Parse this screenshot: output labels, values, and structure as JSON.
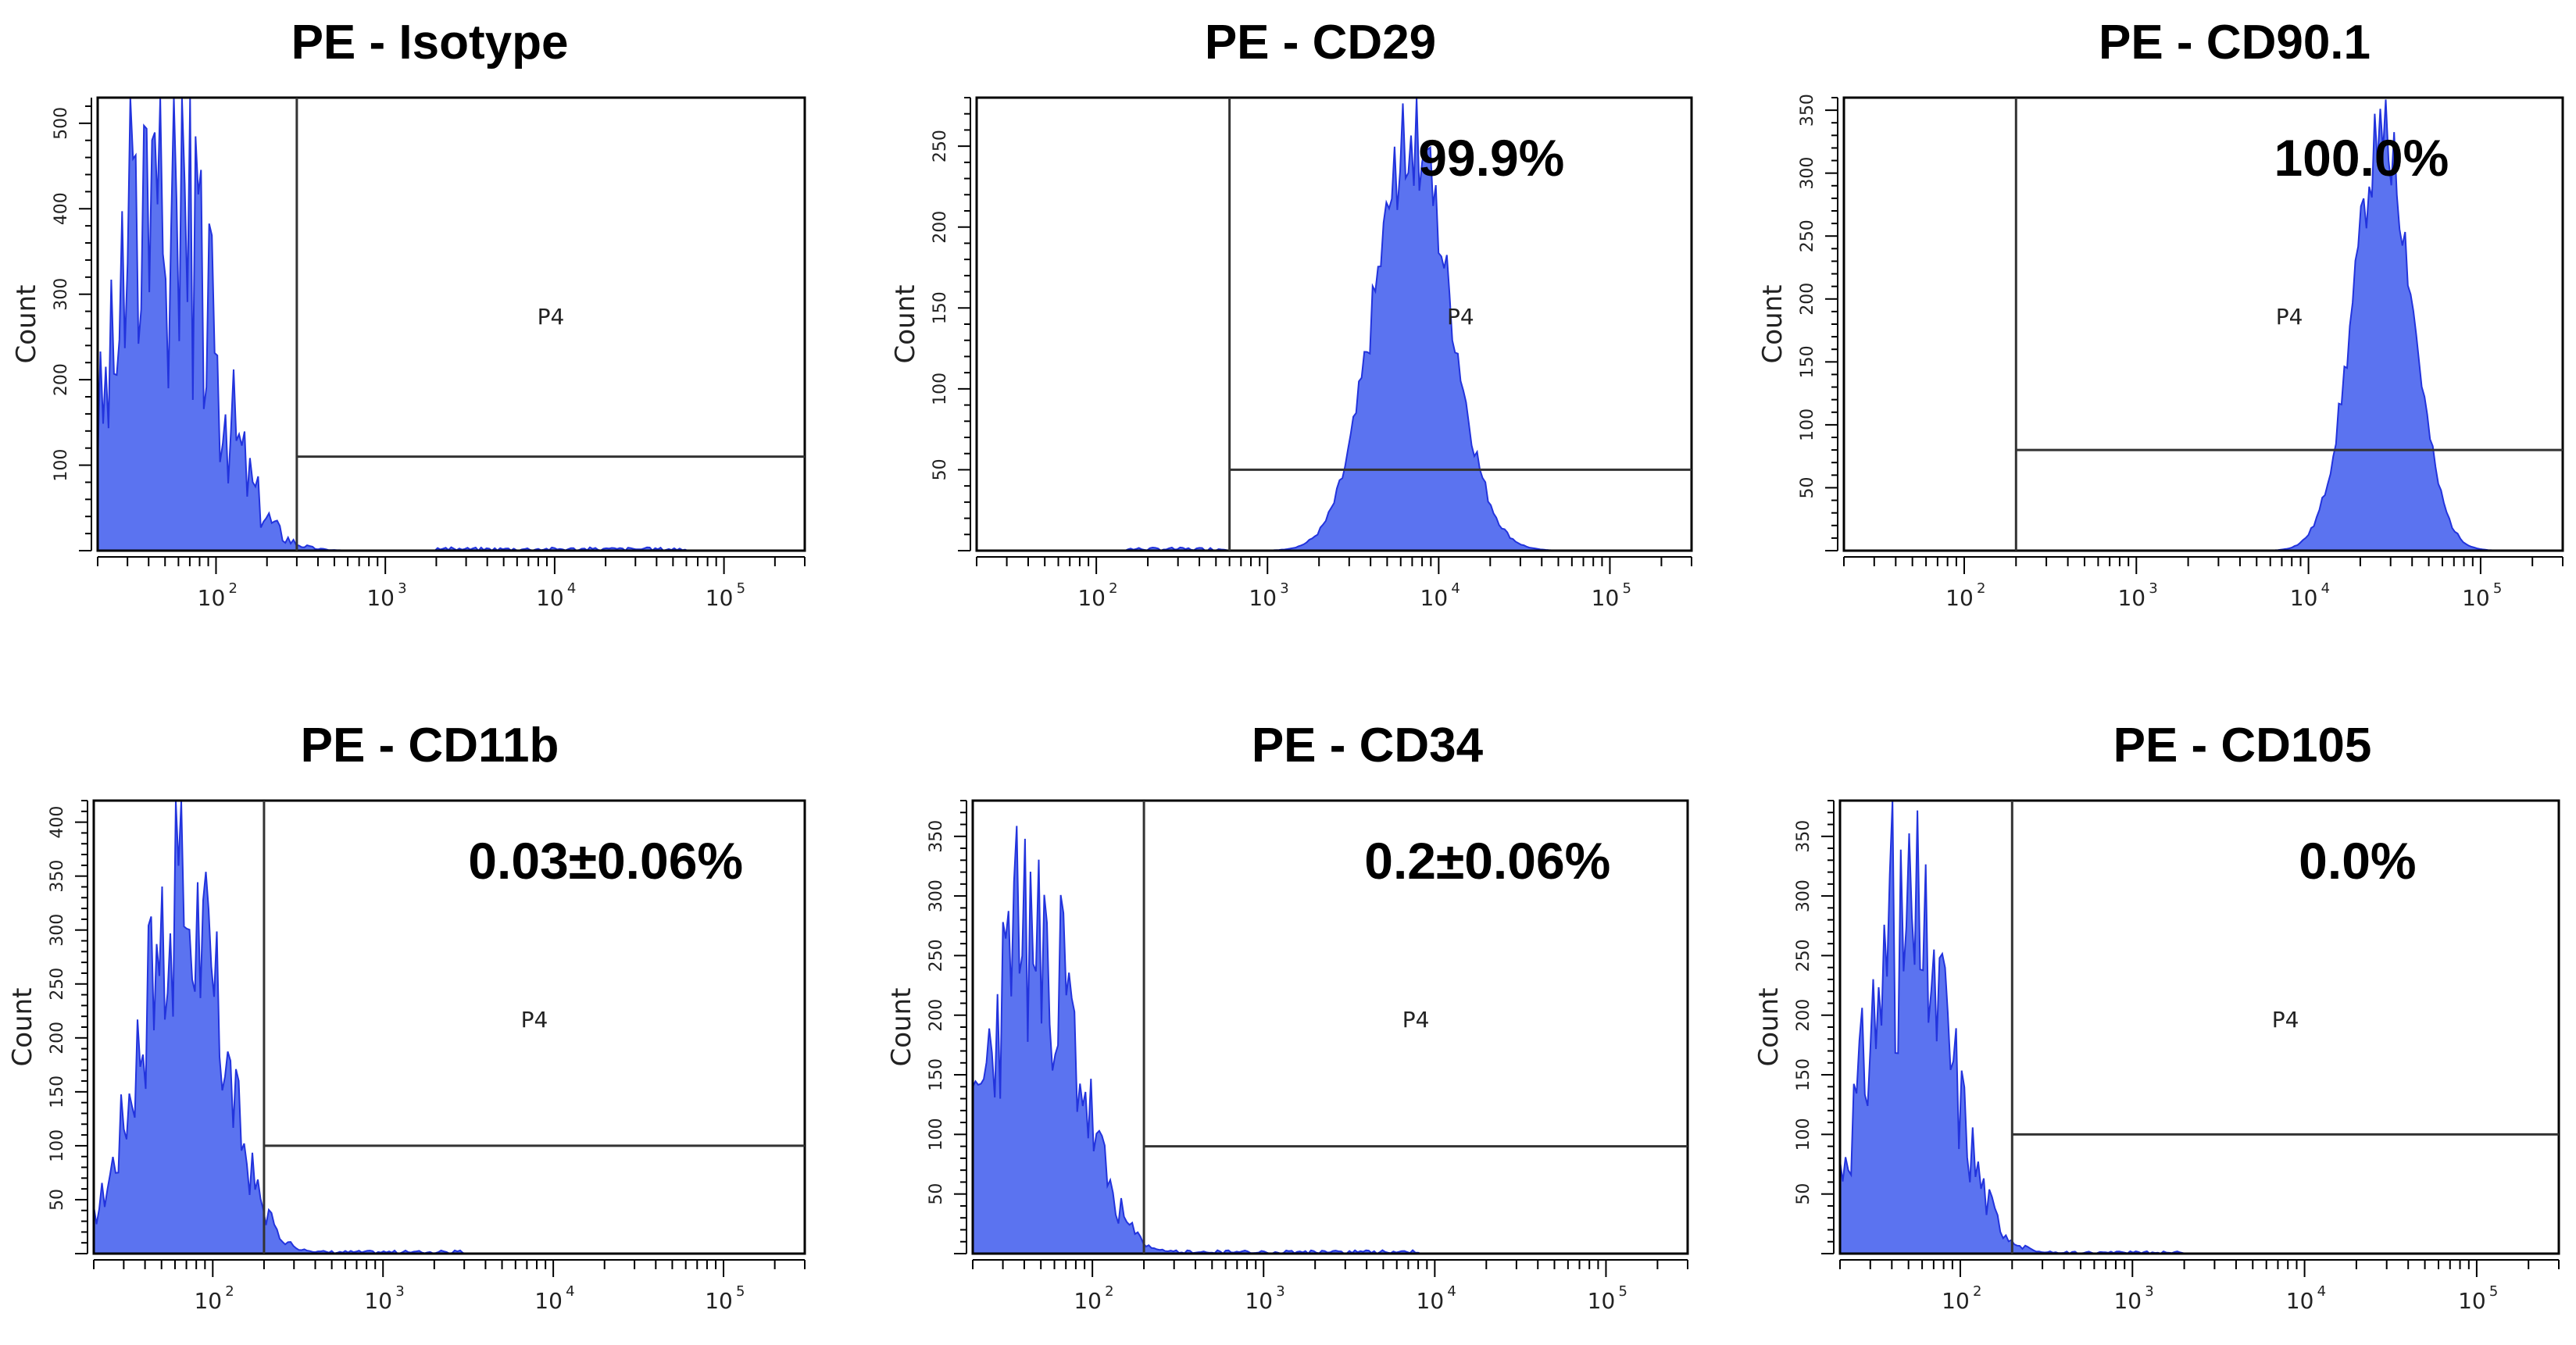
{
  "colors": {
    "histogram_fill": "#5b73f0",
    "histogram_stroke": "#2233dd",
    "frame": "#000000",
    "gate_line": "#333333"
  },
  "chart_data": [
    {
      "type": "histogram",
      "title": "PE - Isotype",
      "ylabel": "Count",
      "xscale": "log",
      "xlim": [
        20,
        300000
      ],
      "x_tick_labels": [
        {
          "exp": "2",
          "value": 100
        },
        {
          "exp": "3",
          "value": 1000
        },
        {
          "exp": "4",
          "value": 10000
        },
        {
          "exp": "5",
          "value": 100000
        }
      ],
      "ylim": [
        0,
        530
      ],
      "y_tick_labels": [
        "100",
        "200",
        "300",
        "400",
        "500"
      ],
      "y_tick_values": [
        100,
        200,
        300,
        400,
        500
      ],
      "gate": {
        "label": "P4",
        "x_start": 300,
        "y_level": 110
      },
      "percent_label": "",
      "distribution": {
        "center": 50,
        "log_sigma": 0.28,
        "peak": 400,
        "spike": 530,
        "noise": 0.55,
        "seed": 3
      },
      "tail": {
        "from": 2000,
        "to": 60000,
        "level": 4
      }
    },
    {
      "type": "histogram",
      "title": "PE - CD29",
      "ylabel": "Count",
      "xscale": "log",
      "xlim": [
        20,
        300000
      ],
      "x_tick_labels": [
        {
          "exp": "2",
          "value": 100
        },
        {
          "exp": "3",
          "value": 1000
        },
        {
          "exp": "4",
          "value": 10000
        },
        {
          "exp": "5",
          "value": 100000
        }
      ],
      "ylim": [
        0,
        280
      ],
      "y_tick_labels": [
        "50",
        "100",
        "150",
        "200",
        "250"
      ],
      "y_tick_values": [
        50,
        100,
        150,
        200,
        250
      ],
      "gate": {
        "label": "P4",
        "x_start": 600,
        "y_level": 50
      },
      "percent_label": "99.9%",
      "distribution": {
        "center": 7000,
        "log_sigma": 0.22,
        "peak": 255,
        "spike": 275,
        "noise": 0.12,
        "seed": 7
      },
      "tail": {
        "from": 150,
        "to": 600,
        "level": 2
      }
    },
    {
      "type": "histogram",
      "title": "PE - CD90.1",
      "ylabel": "Count",
      "xscale": "log",
      "xlim": [
        20,
        300000
      ],
      "x_tick_labels": [
        {
          "exp": "2",
          "value": 100
        },
        {
          "exp": "3",
          "value": 1000
        },
        {
          "exp": "4",
          "value": 10000
        },
        {
          "exp": "5",
          "value": 100000
        }
      ],
      "ylim": [
        0,
        360
      ],
      "y_tick_labels": [
        "50",
        "100",
        "150",
        "200",
        "250",
        "300",
        "350"
      ],
      "y_tick_values": [
        50,
        100,
        150,
        200,
        250,
        300,
        350
      ],
      "gate": {
        "label": "P4",
        "x_start": 200,
        "y_level": 80
      },
      "percent_label": "100.0%",
      "distribution": {
        "center": 27000,
        "log_sigma": 0.17,
        "peak": 330,
        "spike": 360,
        "noise": 0.1,
        "seed": 11
      },
      "tail": {
        "from": 0,
        "to": 0,
        "level": 0
      }
    },
    {
      "type": "histogram",
      "title": "PE - CD11b",
      "ylabel": "Count",
      "xscale": "log",
      "xlim": [
        20,
        300000
      ],
      "x_tick_labels": [
        {
          "exp": "2",
          "value": 100
        },
        {
          "exp": "3",
          "value": 1000
        },
        {
          "exp": "4",
          "value": 10000
        },
        {
          "exp": "5",
          "value": 100000
        }
      ],
      "ylim": [
        0,
        420
      ],
      "y_tick_labels": [
        "50",
        "100",
        "150",
        "200",
        "250",
        "300",
        "350",
        "400"
      ],
      "y_tick_values": [
        50,
        100,
        150,
        200,
        250,
        300,
        350,
        400
      ],
      "gate": {
        "label": "P4",
        "x_start": 200,
        "y_level": 100
      },
      "percent_label": "0.03±0.06%",
      "distribution": {
        "center": 65,
        "log_sigma": 0.24,
        "peak": 330,
        "spike": 420,
        "noise": 0.35,
        "seed": 17
      },
      "tail": {
        "from": 200,
        "to": 3000,
        "level": 3
      }
    },
    {
      "type": "histogram",
      "title": "PE - CD34",
      "ylabel": "Count",
      "xscale": "log",
      "xlim": [
        20,
        300000
      ],
      "x_tick_labels": [
        {
          "exp": "2",
          "value": 100
        },
        {
          "exp": "3",
          "value": 1000
        },
        {
          "exp": "4",
          "value": 10000
        },
        {
          "exp": "5",
          "value": 100000
        }
      ],
      "ylim": [
        0,
        380
      ],
      "y_tick_labels": [
        "50",
        "100",
        "150",
        "200",
        "250",
        "300",
        "350"
      ],
      "y_tick_values": [
        50,
        100,
        150,
        200,
        250,
        300,
        350
      ],
      "gate": {
        "label": "P4",
        "x_start": 200,
        "y_level": 90
      },
      "percent_label": "0.2±0.06%",
      "distribution": {
        "center": 45,
        "log_sigma": 0.25,
        "peak": 280,
        "spike": 380,
        "noise": 0.4,
        "seed": 23
      },
      "tail": {
        "from": 200,
        "to": 8000,
        "level": 3
      }
    },
    {
      "type": "histogram",
      "title": "PE - CD105",
      "ylabel": "Count",
      "xscale": "log",
      "xlim": [
        20,
        300000
      ],
      "x_tick_labels": [
        {
          "exp": "2",
          "value": 100
        },
        {
          "exp": "3",
          "value": 1000
        },
        {
          "exp": "4",
          "value": 10000
        },
        {
          "exp": "5",
          "value": 100000
        }
      ],
      "ylim": [
        0,
        380
      ],
      "y_tick_labels": [
        "50",
        "100",
        "150",
        "200",
        "250",
        "300",
        "350"
      ],
      "y_tick_values": [
        50,
        100,
        150,
        200,
        250,
        300,
        350
      ],
      "gate": {
        "label": "P4",
        "x_start": 200,
        "y_level": 100
      },
      "percent_label": "0.0%",
      "distribution": {
        "center": 50,
        "log_sigma": 0.24,
        "peak": 280,
        "spike": 380,
        "noise": 0.4,
        "seed": 31
      },
      "tail": {
        "from": 200,
        "to": 2000,
        "level": 2
      }
    }
  ]
}
